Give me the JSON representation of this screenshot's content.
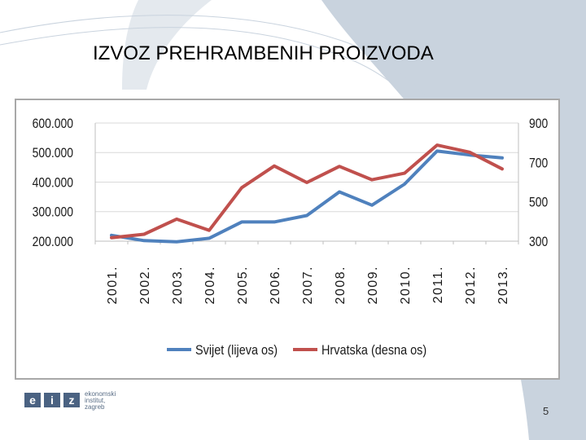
{
  "slide": {
    "title": "IZVOZ PREHRAMBENIH PROIZVODA",
    "page_number": "5",
    "logo": {
      "letters": "eiz",
      "lines": [
        "ekonomski",
        "institut,",
        "zagreb"
      ]
    }
  },
  "colors": {
    "background_shape": "#c9d3de",
    "series_svijet": "#4f81bd",
    "series_hrvatska": "#c0504d",
    "grid": "#d9d9d9",
    "axis_text": "#1a1a1a",
    "logo_blue": "#4a6282"
  },
  "chart_data": {
    "type": "line",
    "title": "",
    "categories": [
      "2001.",
      "2002.",
      "2003.",
      "2004.",
      "2005.",
      "2006.",
      "2007.",
      "2008.",
      "2009.",
      "2010.",
      "2011.",
      "2012.",
      "2013."
    ],
    "y_left": {
      "ylim": [
        200000,
        600000
      ],
      "ticks": [
        200000,
        300000,
        400000,
        500000,
        600000
      ],
      "tick_labels": [
        "200.000",
        "300.000",
        "400.000",
        "500.000",
        "600.000"
      ]
    },
    "y_right": {
      "ylim": [
        300,
        900
      ],
      "ticks": [
        300,
        500,
        700,
        900
      ],
      "tick_labels": [
        "300",
        "500",
        "700",
        "900"
      ]
    },
    "series": [
      {
        "name": "Svijet (lijeva os)",
        "axis": "left",
        "color": "#4f81bd",
        "values": [
          220000,
          202000,
          198000,
          210000,
          265000,
          265000,
          287000,
          367000,
          322000,
          393000,
          505000,
          492000,
          482000
        ]
      },
      {
        "name": "Hrvatska (desna os)",
        "axis": "right",
        "color": "#c0504d",
        "values": [
          318,
          335,
          412,
          355,
          572,
          682,
          598,
          680,
          612,
          645,
          788,
          752,
          667
        ]
      }
    ],
    "grid": true,
    "legend_position": "bottom"
  }
}
